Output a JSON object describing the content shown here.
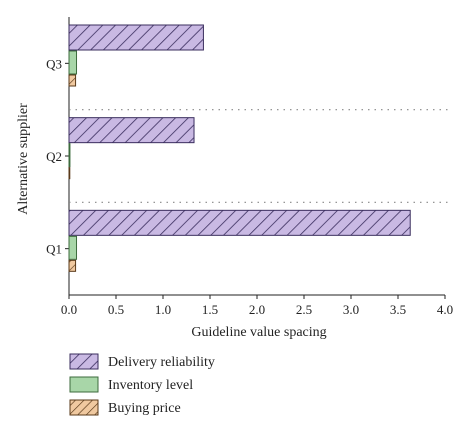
{
  "chart_data": {
    "type": "bar",
    "orientation": "horizontal",
    "categories": [
      "Q1",
      "Q2",
      "Q3"
    ],
    "series": [
      {
        "name": "Delivery reliability",
        "values": [
          3.63,
          1.33,
          1.43
        ]
      },
      {
        "name": "Inventory level",
        "values": [
          0.08,
          0.01,
          0.08
        ]
      },
      {
        "name": "Buying price",
        "values": [
          0.07,
          0.0,
          0.07
        ]
      }
    ],
    "xlabel": "Guideline value spacing",
    "ylabel": "Alternative supplier",
    "xlim": [
      0,
      4.0
    ],
    "xticks": [
      "0.0",
      "0.5",
      "1.0",
      "1.5",
      "2.0",
      "2.5",
      "3.0",
      "3.5",
      "4.0"
    ],
    "grid": false,
    "group_separators": "dotted",
    "legend_position": "bottom-left",
    "colors": {
      "Delivery reliability": "#c9b9e3",
      "Inventory level": "#a8d6a8",
      "Buying price": "#f0c9a0"
    }
  }
}
